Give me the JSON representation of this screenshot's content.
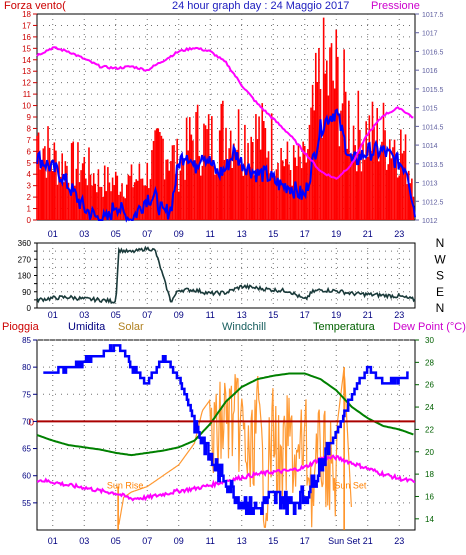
{
  "header": {
    "left_label": "Forza vento(",
    "title": "24 hour graph day : 24 Maggio 2017",
    "right_label": "Pressione"
  },
  "colors": {
    "wind": "#ff0000",
    "wind_avg": "#0000ff",
    "pressure": "#ff00ff",
    "direction": "#1a3a3a",
    "humidity": "#0000ff",
    "solar": "#ff9933",
    "windchill": "#008000",
    "temperature": "#008000",
    "dewpoint": "#ff00ff",
    "rain": "#cc0000",
    "left_axis": "#cc0000",
    "right_axis": "#6060a0",
    "axis_blue": "#000080",
    "grid": "#707070"
  },
  "chart_data": [
    {
      "type": "line",
      "panel": "wind-pressure",
      "x_unit": "hour",
      "x_ticks": [
        "01",
        "03",
        "05",
        "07",
        "09",
        "11",
        "13",
        "15",
        "17",
        "19",
        "21",
        "23"
      ],
      "ylabel_left": "Forza vento(",
      "ylabel_right": "Pressione",
      "ylim_left": [
        0,
        18
      ],
      "y_ticks_left": [
        0,
        1,
        2,
        3,
        4,
        5,
        6,
        7,
        8,
        9,
        10,
        11,
        12,
        13,
        14,
        15,
        16,
        17,
        18
      ],
      "ylim_right": [
        1012,
        1017.5
      ],
      "y_ticks_right": [
        1012,
        1012.5,
        1013,
        1013.5,
        1014,
        1014.5,
        1015,
        1015.5,
        1016,
        1016.5,
        1017,
        1017.5
      ],
      "grid": true,
      "series": [
        {
          "name": "Forza vento(",
          "axis": "left",
          "style": "bars",
          "x": [
            0,
            1,
            2,
            3,
            4,
            5,
            6,
            7,
            8,
            9,
            10,
            11,
            12,
            13,
            14,
            15,
            16,
            17,
            18,
            19,
            20,
            21,
            22,
            23,
            24
          ],
          "values": [
            11,
            8,
            7,
            7,
            5,
            5,
            5,
            6,
            10,
            7,
            11,
            10,
            12,
            11,
            11,
            10,
            7,
            7,
            18,
            18,
            12,
            11,
            11,
            10,
            5
          ]
        },
        {
          "axis": "left",
          "style": "line",
          "x": [
            0,
            0.5,
            1,
            1.5,
            2,
            2.5,
            3,
            3.5,
            4,
            4.5,
            5,
            5.5,
            6,
            6.5,
            7,
            7.5,
            8,
            8.5,
            9,
            9.5,
            10,
            10.5,
            11,
            11.5,
            12,
            12.5,
            13,
            13.5,
            14,
            14.5,
            15,
            15.5,
            16,
            16.5,
            17,
            17.5,
            18,
            18.5,
            19,
            19.5,
            20,
            20.5,
            21,
            21.5,
            22,
            22.5,
            23,
            23.5,
            24
          ],
          "values": [
            5.5,
            5,
            4.5,
            4,
            3,
            2,
            1,
            0.5,
            0,
            0,
            1.5,
            0.5,
            0,
            1,
            2,
            2,
            0.5,
            1,
            5,
            6,
            4.5,
            6,
            5,
            4,
            4.5,
            6,
            5,
            4.5,
            4,
            4,
            3.5,
            3,
            3,
            2.5,
            2,
            5,
            8,
            9,
            9.5,
            7,
            5,
            5.5,
            6,
            6,
            6,
            5.5,
            5,
            4.5,
            0.5
          ]
        },
        {
          "name": "Pressione",
          "axis": "right",
          "style": "line",
          "x": [
            0,
            1,
            2,
            3,
            4,
            5,
            6,
            7,
            8,
            9,
            10,
            11,
            12,
            13,
            14,
            15,
            16,
            17,
            18,
            19,
            20,
            21,
            22,
            23,
            24
          ],
          "values": [
            1016.4,
            1016.6,
            1016.5,
            1016.3,
            1016.1,
            1016.05,
            1016.1,
            1016.0,
            1016.25,
            1016.5,
            1016.6,
            1016.5,
            1016.2,
            1015.6,
            1015.1,
            1014.7,
            1014.3,
            1013.8,
            1013.3,
            1013.1,
            1013.5,
            1014.3,
            1014.8,
            1015.0,
            1014.7
          ]
        }
      ]
    },
    {
      "type": "line",
      "panel": "wind-direction",
      "x_unit": "hour",
      "ylim": [
        0,
        360
      ],
      "y_ticks": [
        0,
        45,
        90,
        135,
        180,
        225,
        270,
        315,
        360
      ],
      "direction_labels": [
        "N",
        "W",
        "S",
        "E",
        "N"
      ],
      "grid": true,
      "series": [
        {
          "axis": "left",
          "x": [
            0,
            1,
            2,
            3,
            4,
            5,
            5.2,
            6,
            7,
            7.5,
            8.5,
            9,
            10,
            11,
            12,
            13,
            14,
            15,
            16,
            17,
            17.5,
            18,
            19,
            20,
            21,
            22,
            23,
            24
          ],
          "values": [
            45,
            55,
            60,
            50,
            45,
            35,
            320,
            310,
            330,
            320,
            35,
            100,
            100,
            80,
            85,
            120,
            110,
            100,
            95,
            45,
            90,
            100,
            95,
            80,
            75,
            70,
            65,
            45
          ]
        }
      ]
    },
    {
      "type": "line",
      "panel": "rain-humidity-temperature",
      "x_unit": "hour",
      "ylim_left": [
        50,
        85
      ],
      "y_ticks_left": [
        55,
        60,
        65,
        70,
        75,
        80,
        85
      ],
      "ylim_right": [
        13,
        30
      ],
      "y_ticks_right": [
        14,
        16,
        18,
        20,
        22,
        24,
        26,
        28,
        30
      ],
      "rain_level_label": "0",
      "sun_rise_label": "Sun Rise",
      "sun_set_label": "Sun Set",
      "legend": [
        "Pioggia",
        "Umidita",
        "Solar",
        "Windchill",
        "Temperatura",
        "Dew Point (°C)"
      ],
      "grid": true,
      "series": [
        {
          "name": "Pioggia",
          "axis": "left",
          "values_constant": 70
        },
        {
          "name": "Umidita",
          "axis": "left",
          "x": [
            0,
            1,
            2,
            3,
            4,
            5,
            5.5,
            6,
            7,
            8,
            9,
            10,
            11,
            12,
            13,
            14,
            15,
            16,
            17,
            18,
            19,
            20,
            21,
            22,
            23,
            24
          ],
          "values": [
            79,
            79,
            80,
            81,
            82,
            84,
            83,
            80,
            77,
            82,
            78,
            70,
            63,
            59,
            55,
            54,
            56,
            55,
            56,
            62,
            68,
            75,
            80,
            77,
            78,
            79
          ]
        },
        {
          "name": "Solar",
          "axis": "left",
          "x": [
            5.2,
            5.5,
            6,
            7,
            8,
            9,
            10,
            10.5,
            11,
            12,
            13,
            13.5,
            14,
            14.5,
            15,
            15.5,
            16,
            16.5,
            17,
            17.5,
            18,
            19,
            19.5,
            20
          ],
          "values": [
            51,
            56,
            57,
            58,
            60,
            62,
            66,
            72,
            74,
            80,
            78,
            70,
            80,
            65,
            78,
            68,
            77,
            70,
            76,
            66,
            74,
            68,
            80,
            52
          ]
        },
        {
          "name": "Windchill",
          "axis": "right",
          "x": [
            0,
            1,
            2,
            3,
            4,
            5,
            6,
            7,
            8,
            9,
            10,
            11,
            12,
            13,
            14,
            15,
            16,
            17,
            18,
            19,
            20,
            21,
            22,
            23,
            24
          ],
          "values": [
            21.5,
            21,
            20.6,
            20.4,
            20.2,
            19.9,
            19.7,
            19.9,
            20.1,
            20.4,
            21,
            22.5,
            24.5,
            25.8,
            26.5,
            26.8,
            27,
            27,
            26.5,
            25.5,
            24,
            23,
            22.3,
            22,
            21.5
          ]
        },
        {
          "name": "Dew Point (°C)",
          "axis": "right",
          "x": [
            0,
            1,
            2,
            3,
            4,
            5,
            6,
            7,
            8,
            9,
            10,
            11,
            12,
            13,
            14,
            15,
            16,
            17,
            18,
            19,
            20,
            21,
            22,
            23,
            24
          ],
          "values": [
            17.5,
            17.3,
            17,
            16.8,
            16.5,
            16.3,
            15.8,
            15.9,
            16.2,
            16.5,
            16.7,
            17,
            17.4,
            17.7,
            18,
            18.2,
            18.3,
            18.6,
            19.4,
            19.5,
            19,
            18.5,
            18,
            17.6,
            17.3
          ]
        }
      ]
    }
  ],
  "panel1": {
    "x_ticks": [
      "01",
      "03",
      "05",
      "07",
      "09",
      "11",
      "13",
      "15",
      "17",
      "19",
      "21",
      "23"
    ],
    "left_ticks": [
      "18",
      "17",
      "16",
      "15",
      "14",
      "13",
      "12",
      "11",
      "10",
      "9",
      "8",
      "7",
      "6",
      "5",
      "4",
      "3",
      "2",
      "1",
      "0"
    ],
    "right_ticks": [
      "1017.5",
      "1017",
      "1016.5",
      "1016",
      "1015.5",
      "1015",
      "1014.5",
      "1014",
      "1013.5",
      "1013",
      "1012.5",
      "1012"
    ]
  },
  "panel2": {
    "left_ticks": [
      "360",
      "315",
      "270",
      "225",
      "180",
      "135",
      "90",
      "45",
      "0"
    ],
    "right_labels": [
      "N",
      "W",
      "S",
      "E",
      "N"
    ],
    "x_ticks": [
      "01",
      "03",
      "05",
      "07",
      "09",
      "11",
      "13",
      "15",
      "17",
      "19",
      "21",
      "23"
    ]
  },
  "panel3": {
    "legend": {
      "rain": "Pioggia",
      "humidity": "Umidita",
      "solar": "Solar",
      "windchill": "Windchill",
      "temperature": "Temperatura",
      "dewpoint": "Dew Point (°C)"
    },
    "left_ticks": [
      "85",
      "80",
      "75",
      "70",
      "65",
      "60",
      "55"
    ],
    "right_ticks": [
      "30",
      "28",
      "26",
      "24",
      "22",
      "20",
      "18",
      "16",
      "14"
    ],
    "rain_zero": "0",
    "sun_rise": "Sun Rise",
    "sun_set": "Sun Set",
    "x_ticks": [
      "01",
      "03",
      "05",
      "07",
      "09",
      "11",
      "13",
      "15",
      "17",
      "Sun Set",
      "21",
      "23"
    ]
  }
}
